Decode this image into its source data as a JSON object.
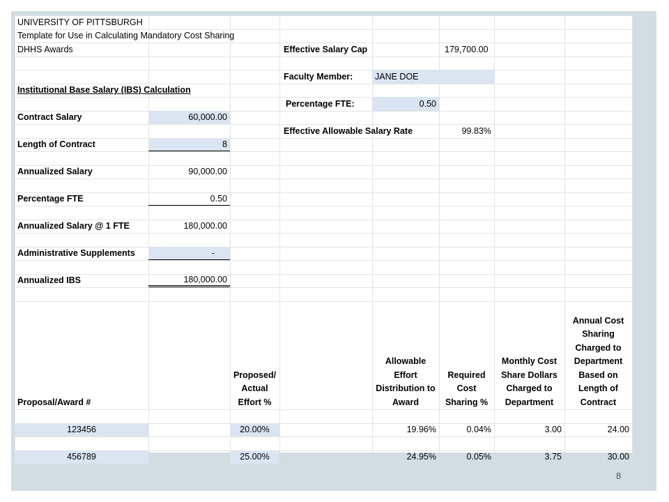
{
  "header": {
    "line1": "UNIVERSITY OF PITTSBURGH",
    "line2": "Template for Use in Calculating Mandatory Cost Sharing",
    "line3": "DHHS Awards"
  },
  "right_panel": {
    "cap_label": "Effective Salary Cap",
    "cap_value": "179,700.00",
    "faculty_label": "Faculty Member:",
    "faculty_value": "JANE DOE",
    "fte_label": "Percentage FTE:",
    "fte_value": "0.50",
    "rate_label": "Effective Allowable Salary Rate",
    "rate_value": "99.83%"
  },
  "ibs": {
    "section_title": "Institutional Base Salary (IBS) Calculation",
    "rows": [
      {
        "label": "Contract Salary",
        "value": "60,000.00"
      },
      {
        "label": "Length of Contract",
        "value": "8"
      },
      {
        "label": "Annualized Salary",
        "value": "90,000.00"
      },
      {
        "label": "Percentage FTE",
        "value": "0.50"
      },
      {
        "label": "Annualized Salary @ 1 FTE",
        "value": "180,000.00"
      },
      {
        "label": "Administrative Supplements",
        "value": "-"
      },
      {
        "label": "Annualized IBS",
        "value": "180,000.00"
      }
    ]
  },
  "table": {
    "headers": {
      "proposal": "Proposal/Award #",
      "effort": "Proposed/ Actual Effort %",
      "allowable": "Allowable Effort Distribution to Award",
      "required": "Required Cost Sharing %",
      "monthly": "Monthly Cost Share Dollars Charged to Department",
      "annual": "Annual Cost Sharing Charged to Department Based on Length of Contract"
    },
    "rows": [
      {
        "award": "123456",
        "effort": "20.00%",
        "allowable": "19.96%",
        "required": "0.04%",
        "monthly": "3.00",
        "annual": "24.00"
      },
      {
        "award": "456789",
        "effort": "25.00%",
        "allowable": "24.95%",
        "required": "0.05%",
        "monthly": "3.75",
        "annual": "30.00"
      }
    ]
  },
  "page_number": "8"
}
